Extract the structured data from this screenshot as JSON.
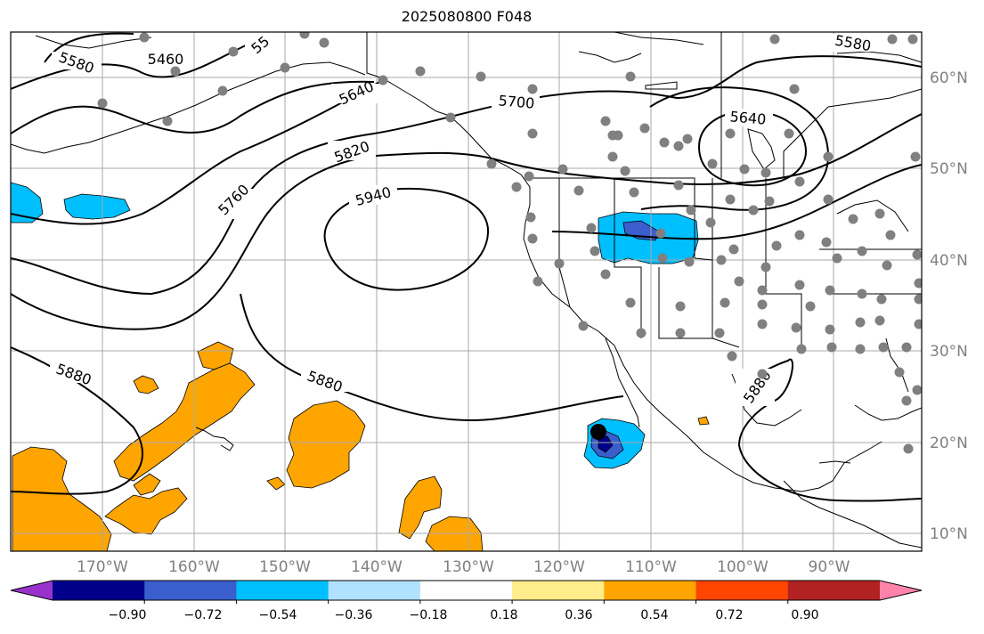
{
  "title": "2025080800 F048",
  "lon_ticks": [
    "170°W",
    "160°W",
    "150°W",
    "140°W",
    "130°W",
    "120°W",
    "110°W",
    "100°W",
    "90°W"
  ],
  "lat_ticks": [
    "60°N",
    "50°N",
    "40°N",
    "30°N",
    "20°N",
    "10°N"
  ],
  "contours": {
    "c5460": "5460",
    "c5520": "55",
    "c5580_w": "5580",
    "c5580_e": "5580",
    "c5640_a": "5640",
    "c5640_b": "5640",
    "c5700": "5700",
    "c5760": "5760",
    "c5820": "5820",
    "c5940": "5940",
    "c5880_a": "5880",
    "c5880_b": "5880",
    "c5880_c": "5880"
  },
  "colorbar": {
    "ticks": [
      "−0.90",
      "−0.72",
      "−0.54",
      "−0.36",
      "−0.18",
      "0.18",
      "0.36",
      "0.54",
      "0.72",
      "0.90"
    ],
    "colors": [
      "#9932cc",
      "#00008b",
      "#3a5fcd",
      "#00bfff",
      "#b0e2ff",
      "#ffffff",
      "#ffec8b",
      "#ffa500",
      "#ff4500",
      "#b22222",
      "#ff83aa"
    ]
  },
  "colors": {
    "station": "#808080",
    "contour": "#000000",
    "grid": "#a9a9a9",
    "tick_label": "#808080"
  }
}
